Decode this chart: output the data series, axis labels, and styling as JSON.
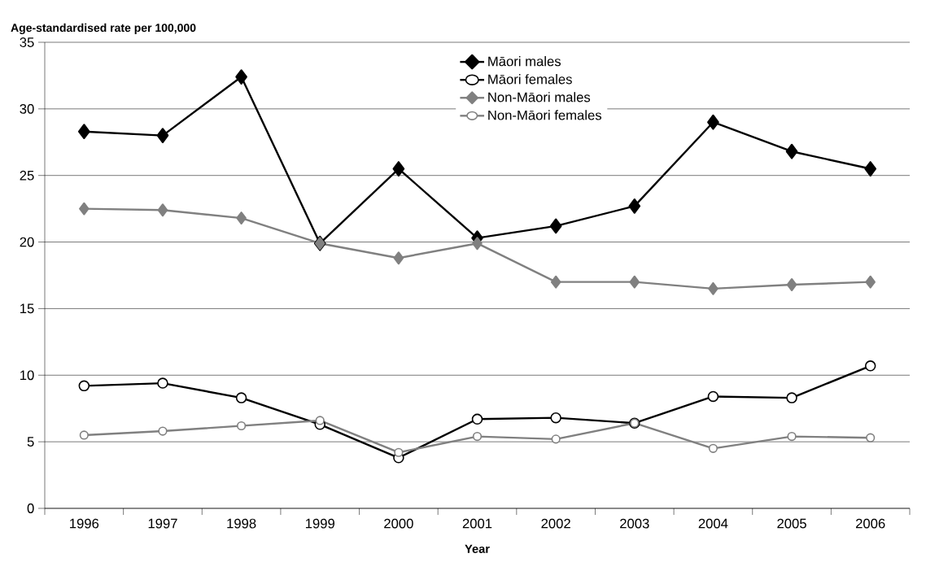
{
  "chart_data": {
    "type": "line",
    "ylabel": "Age-standardised rate per 100,000",
    "xlabel": "Year",
    "categories": [
      "1996",
      "1997",
      "1998",
      "1999",
      "2000",
      "2001",
      "2002",
      "2003",
      "2004",
      "2005",
      "2006"
    ],
    "series": [
      {
        "name": "Māori males",
        "color": "#000000",
        "marker": "diamond",
        "values": [
          28.3,
          28.0,
          32.4,
          19.9,
          25.5,
          20.3,
          21.2,
          22.7,
          29.0,
          26.8,
          25.5
        ]
      },
      {
        "name": "Māori females",
        "color": "#000000",
        "marker": "circle",
        "values": [
          9.2,
          9.4,
          8.3,
          6.3,
          3.8,
          6.7,
          6.8,
          6.4,
          8.4,
          8.3,
          10.7
        ]
      },
      {
        "name": "Non-Māori males",
        "color": "#808080",
        "marker": "diamond",
        "values": [
          22.5,
          22.4,
          21.8,
          19.9,
          18.8,
          19.9,
          17.0,
          17.0,
          16.5,
          16.8,
          17.0
        ]
      },
      {
        "name": "Non-Māori females",
        "color": "#808080",
        "marker": "circle",
        "values": [
          5.5,
          5.8,
          6.2,
          6.6,
          4.2,
          5.4,
          5.2,
          6.4,
          4.5,
          5.4,
          5.3
        ]
      }
    ],
    "ylim": [
      0,
      35
    ],
    "yticks": [
      0,
      5,
      10,
      15,
      20,
      25,
      30,
      35
    ],
    "grid": "y",
    "legend": "top",
    "line_style": "solid"
  }
}
